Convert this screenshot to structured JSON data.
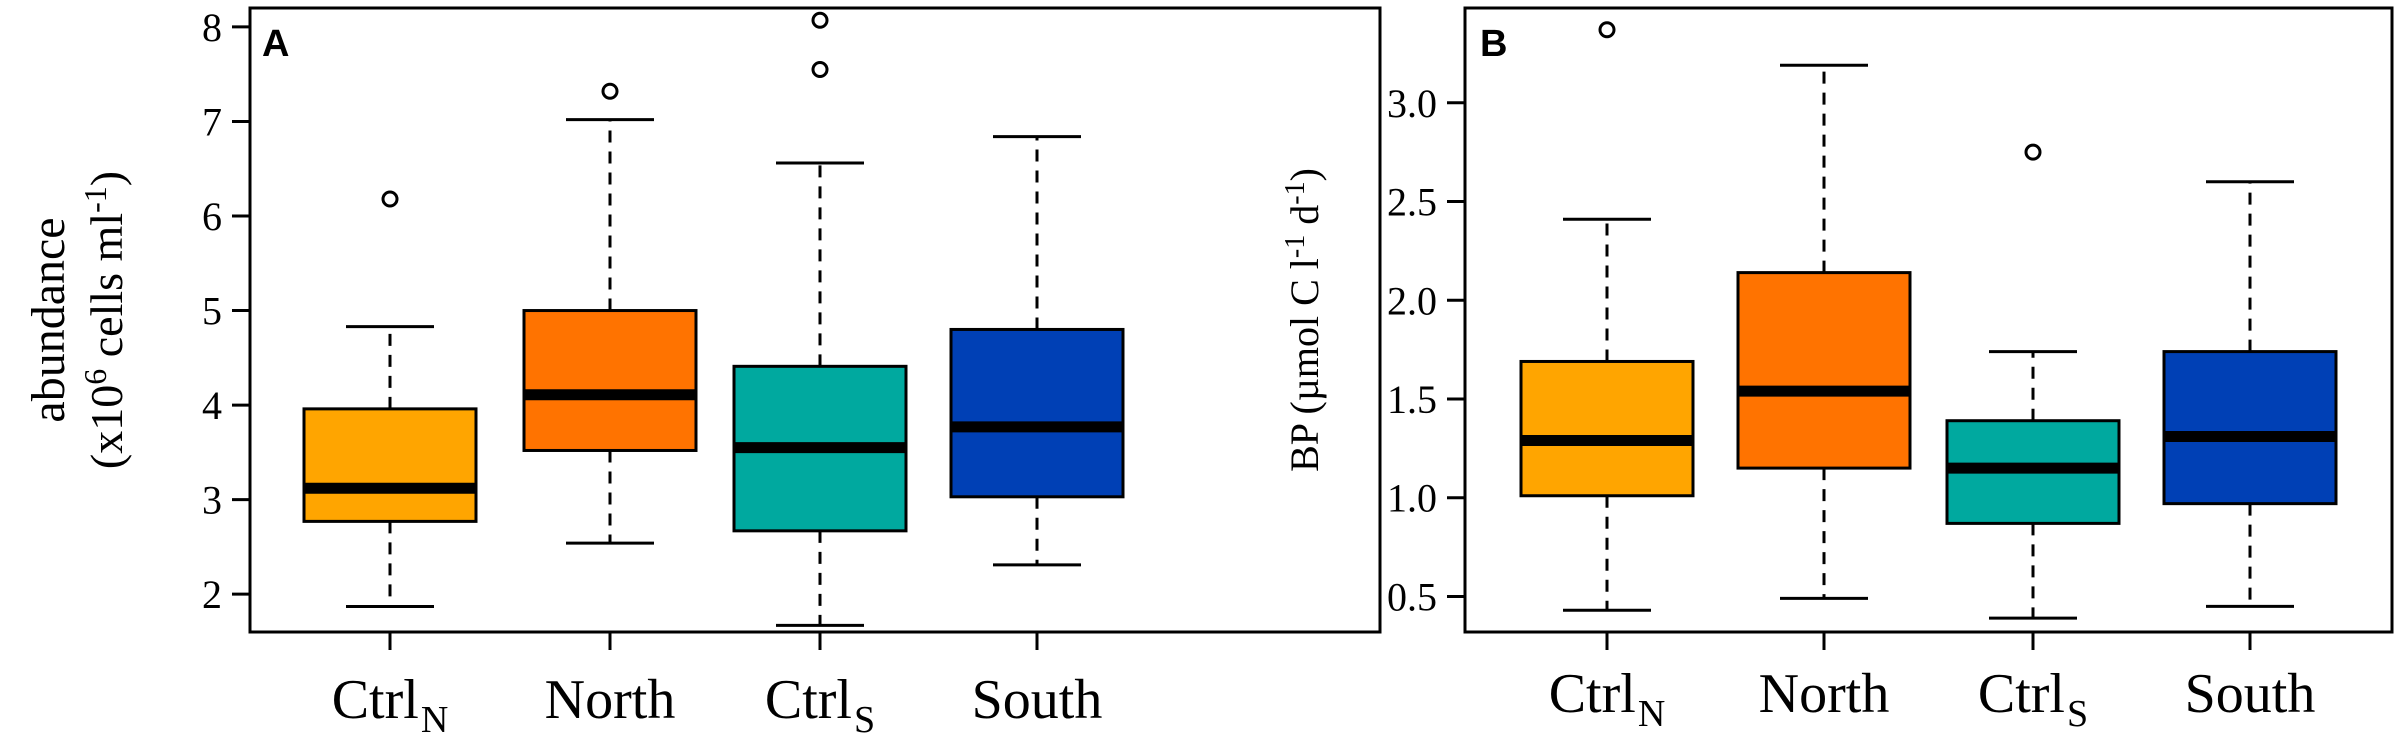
{
  "chart_data": [
    {
      "type": "box",
      "panel_label": "A",
      "ylabel_line1": "abundance",
      "ylabel_line2": {
        "pre": "(x10",
        "exp1": "6",
        "mid": " cells ml",
        "exp2": "-1",
        "post": ")"
      },
      "ylim": [
        1.6,
        8.2
      ],
      "yticks": [
        {
          "value": 2,
          "label": "2"
        },
        {
          "value": 3,
          "label": "3"
        },
        {
          "value": 4,
          "label": "4"
        },
        {
          "value": 5,
          "label": "5"
        },
        {
          "value": 6,
          "label": "6"
        },
        {
          "value": 7,
          "label": "7"
        },
        {
          "value": 8,
          "label": "8"
        }
      ],
      "categories": [
        {
          "main": "Ctrl",
          "sub": "N",
          "color": "#FFA500",
          "min": 1.87,
          "q1": 2.77,
          "median": 3.12,
          "q3": 3.96,
          "max": 4.83,
          "outliers": [
            6.18
          ]
        },
        {
          "main": "North",
          "sub": "",
          "color": "#FF7300",
          "min": 2.54,
          "q1": 3.52,
          "median": 4.11,
          "q3": 5.0,
          "max": 7.02,
          "outliers": [
            7.32
          ]
        },
        {
          "main": "Ctrl",
          "sub": "S",
          "color": "#00A99F",
          "min": 1.67,
          "q1": 2.67,
          "median": 3.55,
          "q3": 4.41,
          "max": 6.56,
          "outliers": [
            7.55,
            8.07
          ]
        },
        {
          "main": "South",
          "sub": "",
          "color": "#0040B5",
          "min": 2.31,
          "q1": 3.03,
          "median": 3.77,
          "q3": 4.8,
          "max": 6.84,
          "outliers": []
        }
      ]
    },
    {
      "type": "box",
      "panel_label": "B",
      "ylabel": {
        "pre": "BP (µmol C l",
        "exp1": "-1",
        "mid": " d",
        "exp2": "-1",
        "post": ")"
      },
      "ylim": [
        0.32,
        3.48
      ],
      "yticks": [
        {
          "value": 0.5,
          "label": "0.5"
        },
        {
          "value": 1.0,
          "label": "1.0"
        },
        {
          "value": 1.5,
          "label": "1.5"
        },
        {
          "value": 2.0,
          "label": "2.0"
        },
        {
          "value": 2.5,
          "label": "2.5"
        },
        {
          "value": 3.0,
          "label": "3.0"
        }
      ],
      "categories": [
        {
          "main": "Ctrl",
          "sub": "N",
          "color": "#FFA500",
          "min": 0.43,
          "q1": 1.01,
          "median": 1.29,
          "q3": 1.69,
          "max": 2.41,
          "outliers": [
            3.37
          ]
        },
        {
          "main": "North",
          "sub": "",
          "color": "#FF7300",
          "min": 0.49,
          "q1": 1.15,
          "median": 1.54,
          "q3": 2.14,
          "max": 3.19,
          "outliers": []
        },
        {
          "main": "Ctrl",
          "sub": "S",
          "color": "#00A99F",
          "min": 0.39,
          "q1": 0.87,
          "median": 1.15,
          "q3": 1.39,
          "max": 1.74,
          "outliers": [
            2.75
          ]
        },
        {
          "main": "South",
          "sub": "",
          "color": "#0040B5",
          "min": 0.45,
          "q1": 0.97,
          "median": 1.31,
          "q3": 1.74,
          "max": 2.6,
          "outliers": []
        }
      ]
    }
  ]
}
